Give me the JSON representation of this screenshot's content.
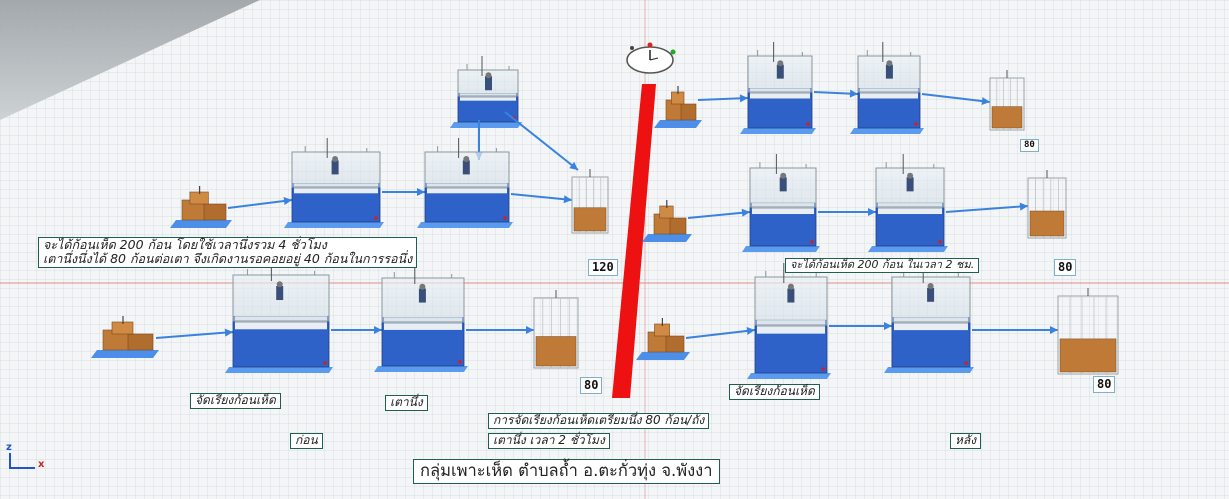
{
  "labels": {
    "before_summary_line1": "จะได้ก้อนเห็ด 200 ก้อน โดยใช้เวลานึ่งรวม 4 ชั่วโมง",
    "before_summary_line2": "เตานึ่งนึ่งได้ 80 ก้อนต่อเตา จึงเกิดงานรอคอยอยู่ 40 ก้อนในการรอนึ่ง",
    "after_summary": "จะได้ก้อนเห็ด 200 ก้อน ในเวลา 2 ชม.",
    "arrange_before": "จัดเรียงก้อนเห็ด",
    "steamer_before": "เตานึ่ง",
    "before": "ก่อน",
    "arrange_after": "จัดเรียงก้อนเห็ด",
    "prep_note": "การจัดเรียงก้อนเห็ดเตรียมนึ่ง  80 ก้อน/ถัง",
    "steam_time": "เตานึ่ง เวลา 2 ชั่วโมง",
    "after": "หลัง",
    "group_title": "กลุ่มเพาะเห็ด ตำบลถ้ำ อ.ตะกั่วทุ่ง จ.พังงา"
  },
  "counts": {
    "before_row1_sink": "120",
    "before_row2_sink": "80",
    "after_row1_sink": "80",
    "after_row2_sink": "80",
    "after_row3_sink": "80"
  },
  "axes": {
    "z": "z",
    "x": "x"
  },
  "colors": {
    "divider": "#ee1111",
    "machine_blue": "#2f62c8",
    "conveyor": "#3a82e0",
    "box": "#c07a38",
    "grid_line": "#cfd6da",
    "floor": "#f2f4f5"
  }
}
